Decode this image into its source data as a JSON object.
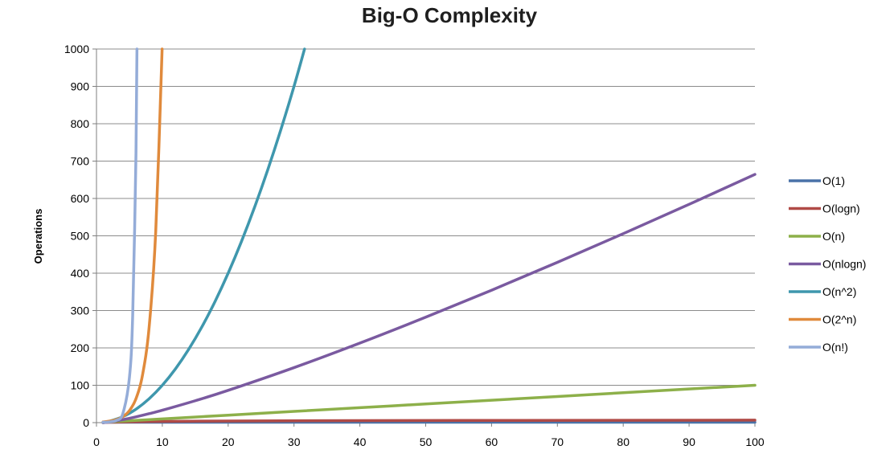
{
  "chart_data": {
    "type": "line",
    "title": "Big-O Complexity",
    "xlabel": "",
    "ylabel": "Operations",
    "xlim": [
      0,
      100
    ],
    "ylim": [
      0,
      1000
    ],
    "x_ticks": [
      "0",
      "10",
      "20",
      "30",
      "40",
      "50",
      "60",
      "70",
      "80",
      "90",
      "100"
    ],
    "y_ticks": [
      "0",
      "100",
      "200",
      "300",
      "400",
      "500",
      "600",
      "700",
      "800",
      "900",
      "1000"
    ],
    "grid": "horizontal",
    "legend_position": "right",
    "series": [
      {
        "name": "O(1)",
        "color": "#4a72a8",
        "points": [
          [
            1,
            1
          ],
          [
            100,
            1
          ]
        ]
      },
      {
        "name": "O(logn)",
        "color": "#b04a46",
        "points": [
          [
            1,
            0
          ],
          [
            2,
            1
          ],
          [
            4,
            2
          ],
          [
            8,
            3
          ],
          [
            16,
            4
          ],
          [
            32,
            5
          ],
          [
            64,
            6
          ],
          [
            100,
            6.6
          ]
        ]
      },
      {
        "name": "O(n)",
        "color": "#8db04a",
        "points": [
          [
            1,
            1
          ],
          [
            10,
            10
          ],
          [
            20,
            20
          ],
          [
            30,
            30
          ],
          [
            40,
            40
          ],
          [
            50,
            50
          ],
          [
            60,
            60
          ],
          [
            70,
            70
          ],
          [
            80,
            80
          ],
          [
            90,
            90
          ],
          [
            100,
            100
          ]
        ]
      },
      {
        "name": "O(nlogn)",
        "color": "#7a5aa0",
        "points": [
          [
            1,
            0
          ],
          [
            2,
            2
          ],
          [
            4,
            8
          ],
          [
            6,
            15.5
          ],
          [
            8,
            24
          ],
          [
            10,
            33.2
          ],
          [
            15,
            58.6
          ],
          [
            20,
            86.4
          ],
          [
            30,
            147.2
          ],
          [
            40,
            212.9
          ],
          [
            50,
            282.2
          ],
          [
            60,
            354.4
          ],
          [
            70,
            429.1
          ],
          [
            80,
            505.8
          ],
          [
            90,
            584.3
          ],
          [
            100,
            664.4
          ]
        ]
      },
      {
        "name": "O(n^2)",
        "color": "#3f97ad",
        "points": [
          [
            1,
            1
          ],
          [
            2,
            4
          ],
          [
            4,
            16
          ],
          [
            6,
            36
          ],
          [
            8,
            64
          ],
          [
            10,
            100
          ],
          [
            12,
            144
          ],
          [
            14,
            196
          ],
          [
            16,
            256
          ],
          [
            18,
            324
          ],
          [
            20,
            400
          ],
          [
            22,
            484
          ],
          [
            24,
            576
          ],
          [
            26,
            676
          ],
          [
            28,
            784
          ],
          [
            30,
            900
          ],
          [
            31.6,
            1000
          ]
        ]
      },
      {
        "name": "O(2^n)",
        "color": "#e08a3c",
        "points": [
          [
            1,
            2
          ],
          [
            2,
            4
          ],
          [
            3,
            8
          ],
          [
            4,
            16
          ],
          [
            5,
            32
          ],
          [
            6,
            64
          ],
          [
            7,
            128
          ],
          [
            8,
            256
          ],
          [
            9,
            512
          ],
          [
            9.97,
            1000
          ]
        ]
      },
      {
        "name": "O(n!)",
        "color": "#94acd8",
        "points": [
          [
            1,
            1
          ],
          [
            2,
            2
          ],
          [
            3,
            6
          ],
          [
            4,
            24
          ],
          [
            5,
            120
          ],
          [
            5.5,
            287
          ],
          [
            6,
            720
          ],
          [
            6.15,
            1000
          ]
        ]
      }
    ]
  }
}
